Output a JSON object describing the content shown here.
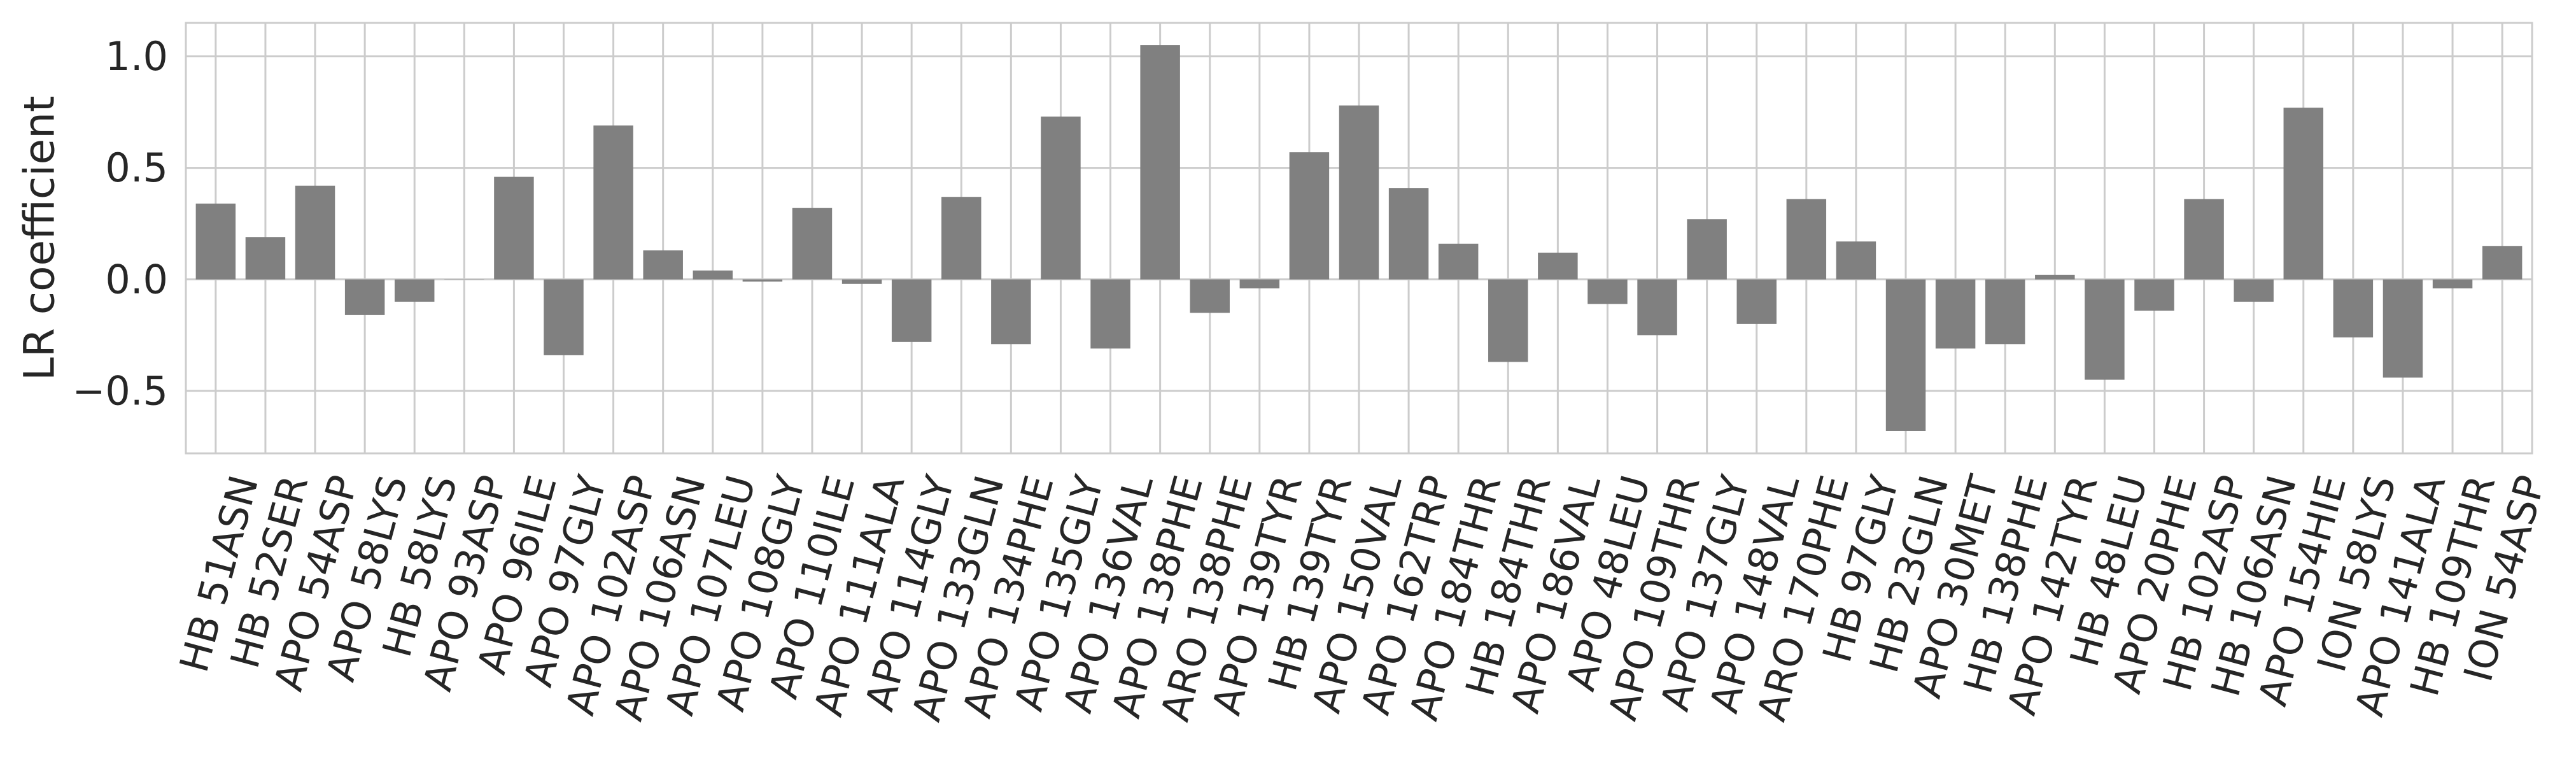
{
  "chart_data": {
    "type": "bar",
    "ylabel": "LR coefficient",
    "xlabel": "",
    "title": "",
    "ylim": [
      -0.78,
      1.15
    ],
    "yticks": [
      -0.5,
      0.0,
      0.5,
      1.0
    ],
    "ytick_labels": [
      "−0.5",
      "0.0",
      "0.5",
      "1.0"
    ],
    "grid": true,
    "bar_color": "#808080",
    "grid_color": "#cccccc",
    "categories": [
      "HB 51ASN",
      "HB 52SER",
      "APO 54ASP",
      "APO 58LYS",
      "HB 58LYS",
      "APO 93ASP",
      "APO 96ILE",
      "APO 97GLY",
      "APO 102ASP",
      "APO 106ASN",
      "APO 107LEU",
      "APO 108GLY",
      "APO 110ILE",
      "APO 111ALA",
      "APO 114GLY",
      "APO 133GLN",
      "APO 134PHE",
      "APO 135GLY",
      "APO 136VAL",
      "APO 138PHE",
      "ARO 138PHE",
      "APO 139TYR",
      "HB 139TYR",
      "APO 150VAL",
      "APO 162TRP",
      "APO 184THR",
      "HB 184THR",
      "APO 186VAL",
      "APO 48LEU",
      "APO 109THR",
      "APO 137GLY",
      "APO 148VAL",
      "ARO 170PHE",
      "HB 97GLY",
      "HB 23GLN",
      "APO 30MET",
      "HB 138PHE",
      "APO 142TYR",
      "HB 48LEU",
      "APO 20PHE",
      "HB 102ASP",
      "HB 106ASN",
      "APO 154HIE",
      "ION 58LYS",
      "APO 141ALA",
      "HB 109THR",
      "ION 54ASP"
    ],
    "values": [
      0.34,
      0.19,
      0.42,
      -0.16,
      -0.1,
      0.0,
      0.46,
      -0.34,
      0.69,
      0.13,
      0.04,
      -0.01,
      0.32,
      -0.02,
      -0.28,
      0.37,
      -0.29,
      0.73,
      -0.31,
      1.05,
      -0.15,
      -0.04,
      0.57,
      0.78,
      0.41,
      0.16,
      -0.37,
      0.12,
      -0.11,
      -0.25,
      0.27,
      -0.2,
      0.36,
      0.17,
      -0.68,
      -0.31,
      -0.29,
      0.02,
      -0.45,
      -0.14,
      0.36,
      -0.1,
      0.77,
      -0.26,
      -0.44,
      -0.04,
      0.15
    ]
  }
}
